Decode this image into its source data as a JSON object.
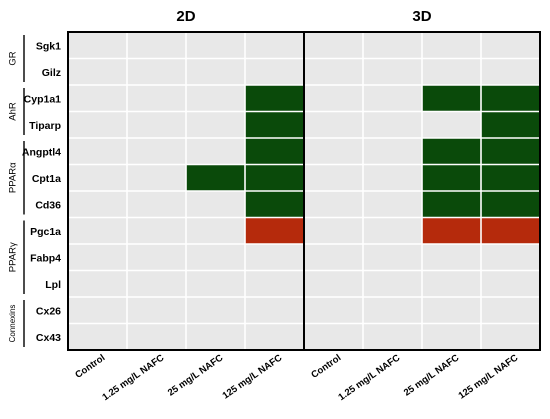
{
  "chart_data": {
    "type": "heatmap",
    "panels": [
      "2D",
      "3D"
    ],
    "conditions": [
      "Control",
      "1.25 mg/L NAFC",
      "25 mg/L NAFC",
      "125 mg/L NAFC"
    ],
    "groups": [
      {
        "name": "GR",
        "genes": [
          "Sgk1",
          "Gilz"
        ]
      },
      {
        "name": "AhR",
        "genes": [
          "Cyp1a1",
          "Tiparp"
        ]
      },
      {
        "name": "PPARα",
        "genes": [
          "Angptl4",
          "Cpt1a",
          "Cd36"
        ]
      },
      {
        "name": "PPARγ",
        "genes": [
          "Pgc1a",
          "Fabp4",
          "Lpl"
        ]
      },
      {
        "name": "Connexins",
        "genes": [
          "Cx26",
          "Cx43"
        ]
      }
    ],
    "rows": [
      "Sgk1",
      "Gilz",
      "Cyp1a1",
      "Tiparp",
      "Angptl4",
      "Cpt1a",
      "Cd36",
      "Pgc1a",
      "Fabp4",
      "Lpl",
      "Cx26",
      "Cx43"
    ],
    "values": {
      "2D": [
        [
          0,
          0,
          0,
          0
        ],
        [
          0,
          0,
          0,
          0
        ],
        [
          0,
          0,
          0,
          1
        ],
        [
          0,
          0,
          0,
          1
        ],
        [
          0,
          0,
          0,
          1
        ],
        [
          0,
          0,
          1,
          1
        ],
        [
          0,
          0,
          0,
          1
        ],
        [
          0,
          0,
          0,
          -1
        ],
        [
          0,
          0,
          0,
          0
        ],
        [
          0,
          0,
          0,
          0
        ],
        [
          0,
          0,
          0,
          0
        ],
        [
          0,
          0,
          0,
          0
        ]
      ],
      "3D": [
        [
          0,
          0,
          0,
          0
        ],
        [
          0,
          0,
          0,
          0
        ],
        [
          0,
          0,
          1,
          1
        ],
        [
          0,
          0,
          0,
          1
        ],
        [
          0,
          0,
          1,
          1
        ],
        [
          0,
          0,
          1,
          1
        ],
        [
          0,
          0,
          1,
          1
        ],
        [
          0,
          0,
          -1,
          -1
        ],
        [
          0,
          0,
          0,
          0
        ],
        [
          0,
          0,
          0,
          0
        ],
        [
          0,
          0,
          0,
          0
        ],
        [
          0,
          0,
          0,
          0
        ]
      ]
    },
    "colors": {
      "neutral": "#e8e8e8",
      "up": "#0a4a0a",
      "down": "#b52a0c",
      "grid": "#ffffff",
      "frame": "#000000"
    },
    "legend": "none",
    "grid": true
  }
}
